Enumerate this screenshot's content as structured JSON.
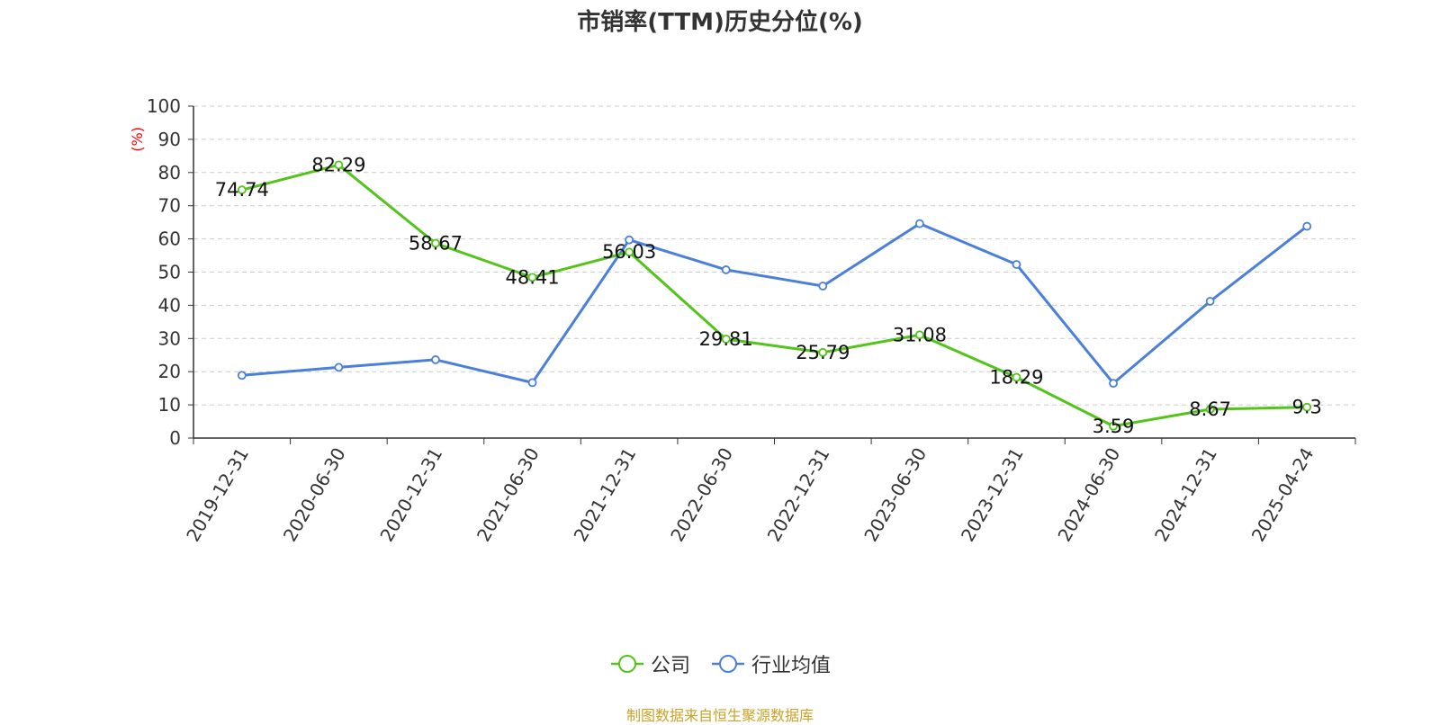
{
  "title": "市销率(TTM)历史分位(%)",
  "source": "制图数据来自恒生聚源数据库",
  "colors": {
    "company": "#52c41a",
    "industry": "#4a7fdb",
    "unit_label": "#ff0000",
    "source": "#c9a227",
    "axis": "#333333",
    "grid": "#cccccc"
  },
  "chart_data": {
    "type": "line",
    "title": "市销率(TTM)历史分位(%)",
    "ylabel": "(%)",
    "xlabel": "",
    "ylim": [
      0,
      100
    ],
    "yticks": [
      "0",
      "10",
      "20",
      "30",
      "40",
      "50",
      "60",
      "70",
      "80",
      "90",
      "100"
    ],
    "grid": true,
    "legend_position": "bottom",
    "categories": [
      "2019-12-31",
      "2020-06-30",
      "2020-12-31",
      "2021-06-30",
      "2021-12-31",
      "2022-06-30",
      "2022-12-31",
      "2023-06-30",
      "2023-12-31",
      "2024-06-30",
      "2024-12-31",
      "2025-04-24"
    ],
    "series": [
      {
        "name": "公司",
        "values": [
          74.74,
          82.29,
          58.67,
          48.41,
          56.03,
          29.81,
          25.79,
          31.08,
          18.29,
          3.59,
          8.67,
          9.3
        ],
        "labels": [
          "74.74",
          "82.29",
          "58.67",
          "48.41",
          "56.03",
          "29.81",
          "25.79",
          "31.08",
          "18.29",
          "3.59",
          "8.67",
          "9.3"
        ],
        "show_labels": true
      },
      {
        "name": "行业均值",
        "values": [
          18.9,
          21.3,
          23.6,
          16.7,
          59.7,
          50.7,
          45.8,
          64.6,
          52.3,
          16.5,
          41.2,
          63.8
        ],
        "show_labels": false
      }
    ]
  }
}
